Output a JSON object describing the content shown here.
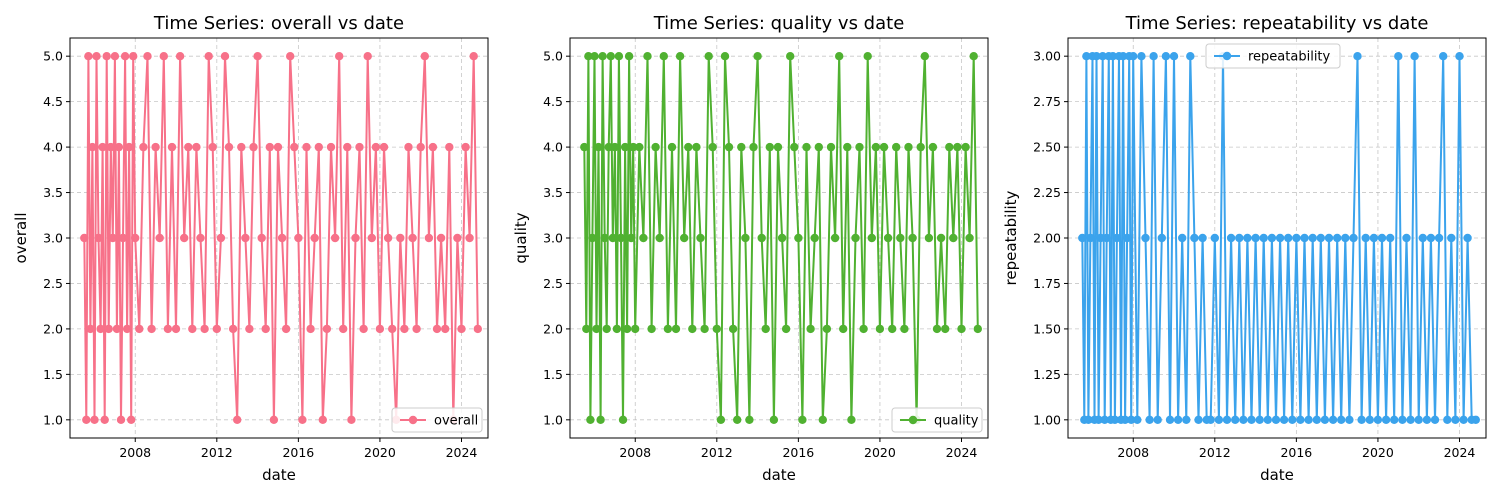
{
  "chart_data": [
    {
      "type": "line",
      "title": "Time Series: overall vs date",
      "xlabel": "date",
      "ylabel": "overall",
      "xlim": [
        2004.8,
        2025.3
      ],
      "ylim": [
        0.8,
        5.2
      ],
      "xticks": [
        "2008",
        "2012",
        "2016",
        "2020",
        "2024"
      ],
      "xtick_values": [
        2008,
        2012,
        2016,
        2020,
        2024
      ],
      "yticks": [
        "1.0",
        "1.5",
        "2.0",
        "2.5",
        "3.0",
        "3.5",
        "4.0",
        "4.5",
        "5.0"
      ],
      "ytick_values": [
        1.0,
        1.5,
        2.0,
        2.5,
        3.0,
        3.5,
        4.0,
        4.5,
        5.0
      ],
      "grid": true,
      "legend_placement": "lower-right",
      "series": [
        {
          "name": "overall",
          "color": "#f77189",
          "x": [
            2005.5,
            2005.6,
            2005.7,
            2005.8,
            2005.9,
            2006.0,
            2006.1,
            2006.2,
            2006.3,
            2006.4,
            2006.5,
            2006.6,
            2006.7,
            2006.8,
            2006.9,
            2007.0,
            2007.1,
            2007.2,
            2007.3,
            2007.4,
            2007.5,
            2007.6,
            2007.7,
            2007.8,
            2007.9,
            2008.0,
            2008.2,
            2008.4,
            2008.6,
            2008.8,
            2009.0,
            2009.2,
            2009.4,
            2009.6,
            2009.8,
            2010.0,
            2010.2,
            2010.4,
            2010.6,
            2010.8,
            2011.0,
            2011.2,
            2011.4,
            2011.6,
            2011.8,
            2012.0,
            2012.2,
            2012.4,
            2012.6,
            2012.8,
            2013.0,
            2013.2,
            2013.4,
            2013.6,
            2013.8,
            2014.0,
            2014.2,
            2014.4,
            2014.6,
            2014.8,
            2015.0,
            2015.2,
            2015.4,
            2015.6,
            2015.8,
            2016.0,
            2016.2,
            2016.4,
            2016.6,
            2016.8,
            2017.0,
            2017.2,
            2017.4,
            2017.6,
            2017.8,
            2018.0,
            2018.2,
            2018.4,
            2018.6,
            2018.8,
            2019.0,
            2019.2,
            2019.4,
            2019.6,
            2019.8,
            2020.0,
            2020.2,
            2020.4,
            2020.6,
            2020.8,
            2021.0,
            2021.2,
            2021.4,
            2021.6,
            2021.8,
            2022.0,
            2022.2,
            2022.4,
            2022.6,
            2022.8,
            2023.0,
            2023.2,
            2023.4,
            2023.6,
            2023.8,
            2024.0,
            2024.2,
            2024.4,
            2024.6,
            2024.8
          ],
          "y": [
            3,
            1,
            5,
            2,
            4,
            1,
            5,
            3,
            2,
            4,
            1,
            5,
            2,
            4,
            3,
            5,
            2,
            4,
            1,
            3,
            5,
            2,
            4,
            1,
            5,
            3,
            2,
            4,
            5,
            2,
            4,
            3,
            5,
            2,
            4,
            2,
            5,
            3,
            4,
            2,
            4,
            3,
            2,
            5,
            4,
            2,
            3,
            5,
            4,
            2,
            1,
            4,
            3,
            2,
            4,
            5,
            3,
            2,
            4,
            1,
            4,
            3,
            2,
            5,
            4,
            3,
            1,
            4,
            2,
            3,
            4,
            1,
            2,
            4,
            3,
            5,
            2,
            4,
            1,
            3,
            4,
            2,
            5,
            3,
            4,
            2,
            4,
            3,
            2,
            1,
            3,
            2,
            4,
            3,
            2,
            4,
            5,
            3,
            4,
            2,
            3,
            2,
            4,
            1,
            3,
            2,
            4,
            3,
            5,
            2
          ]
        }
      ]
    },
    {
      "type": "line",
      "title": "Time Series: quality vs date",
      "xlabel": "date",
      "ylabel": "quality",
      "xlim": [
        2004.8,
        2025.3
      ],
      "ylim": [
        0.8,
        5.2
      ],
      "xticks": [
        "2008",
        "2012",
        "2016",
        "2020",
        "2024"
      ],
      "xtick_values": [
        2008,
        2012,
        2016,
        2020,
        2024
      ],
      "yticks": [
        "1.0",
        "1.5",
        "2.0",
        "2.5",
        "3.0",
        "3.5",
        "4.0",
        "4.5",
        "5.0"
      ],
      "ytick_values": [
        1.0,
        1.5,
        2.0,
        2.5,
        3.0,
        3.5,
        4.0,
        4.5,
        5.0
      ],
      "grid": true,
      "legend_placement": "lower-right",
      "series": [
        {
          "name": "quality",
          "color": "#50b131",
          "x": [
            2005.5,
            2005.6,
            2005.7,
            2005.8,
            2005.9,
            2006.0,
            2006.1,
            2006.2,
            2006.3,
            2006.4,
            2006.5,
            2006.6,
            2006.7,
            2006.8,
            2006.9,
            2007.0,
            2007.1,
            2007.2,
            2007.3,
            2007.4,
            2007.5,
            2007.6,
            2007.7,
            2007.8,
            2007.9,
            2008.0,
            2008.2,
            2008.4,
            2008.6,
            2008.8,
            2009.0,
            2009.2,
            2009.4,
            2009.6,
            2009.8,
            2010.0,
            2010.2,
            2010.4,
            2010.6,
            2010.8,
            2011.0,
            2011.2,
            2011.4,
            2011.6,
            2011.8,
            2012.0,
            2012.2,
            2012.4,
            2012.6,
            2012.8,
            2013.0,
            2013.2,
            2013.4,
            2013.6,
            2013.8,
            2014.0,
            2014.2,
            2014.4,
            2014.6,
            2014.8,
            2015.0,
            2015.2,
            2015.4,
            2015.6,
            2015.8,
            2016.0,
            2016.2,
            2016.4,
            2016.6,
            2016.8,
            2017.0,
            2017.2,
            2017.4,
            2017.6,
            2017.8,
            2018.0,
            2018.2,
            2018.4,
            2018.6,
            2018.8,
            2019.0,
            2019.2,
            2019.4,
            2019.6,
            2019.8,
            2020.0,
            2020.2,
            2020.4,
            2020.6,
            2020.8,
            2021.0,
            2021.2,
            2021.4,
            2021.6,
            2021.8,
            2022.0,
            2022.2,
            2022.4,
            2022.6,
            2022.8,
            2023.0,
            2023.2,
            2023.4,
            2023.6,
            2023.8,
            2024.0,
            2024.2,
            2024.4,
            2024.6,
            2024.8
          ],
          "y": [
            4,
            2,
            5,
            1,
            3,
            5,
            2,
            4,
            1,
            5,
            3,
            2,
            4,
            5,
            3,
            4,
            2,
            5,
            3,
            1,
            4,
            2,
            5,
            3,
            4,
            2,
            4,
            3,
            5,
            2,
            4,
            3,
            5,
            2,
            4,
            2,
            5,
            3,
            4,
            2,
            4,
            3,
            2,
            5,
            4,
            2,
            1,
            5,
            4,
            2,
            1,
            4,
            3,
            1,
            4,
            5,
            3,
            2,
            4,
            1,
            4,
            3,
            2,
            5,
            4,
            3,
            1,
            4,
            2,
            3,
            4,
            1,
            2,
            4,
            3,
            5,
            2,
            4,
            1,
            3,
            4,
            2,
            5,
            3,
            4,
            2,
            4,
            3,
            2,
            4,
            3,
            2,
            4,
            3,
            1,
            4,
            5,
            3,
            4,
            2,
            3,
            2,
            4,
            3,
            4,
            2,
            4,
            3,
            5,
            2
          ]
        }
      ]
    },
    {
      "type": "line",
      "title": "Time Series: repeatability vs date",
      "xlabel": "date",
      "ylabel": "repeatability",
      "xlim": [
        2004.8,
        2025.3
      ],
      "ylim": [
        0.9,
        3.1
      ],
      "xticks": [
        "2008",
        "2012",
        "2016",
        "2020",
        "2024"
      ],
      "xtick_values": [
        2008,
        2012,
        2016,
        2020,
        2024
      ],
      "yticks": [
        "1.00",
        "1.25",
        "1.50",
        "1.75",
        "2.00",
        "2.25",
        "2.50",
        "2.75",
        "3.00"
      ],
      "ytick_values": [
        1.0,
        1.25,
        1.5,
        1.75,
        2.0,
        2.25,
        2.5,
        2.75,
        3.0
      ],
      "grid": true,
      "legend_placement": "top-center",
      "series": [
        {
          "name": "repeatability",
          "color": "#3ba3ec",
          "x": [
            2005.5,
            2005.6,
            2005.7,
            2005.8,
            2005.9,
            2006.0,
            2006.1,
            2006.2,
            2006.3,
            2006.4,
            2006.5,
            2006.6,
            2006.7,
            2006.8,
            2006.9,
            2007.0,
            2007.1,
            2007.2,
            2007.3,
            2007.4,
            2007.5,
            2007.6,
            2007.7,
            2007.8,
            2007.9,
            2008.0,
            2008.2,
            2008.4,
            2008.6,
            2008.8,
            2009.0,
            2009.2,
            2009.4,
            2009.6,
            2009.8,
            2010.0,
            2010.2,
            2010.4,
            2010.6,
            2010.8,
            2011.0,
            2011.2,
            2011.4,
            2011.6,
            2011.8,
            2012.0,
            2012.2,
            2012.4,
            2012.6,
            2012.8,
            2013.0,
            2013.2,
            2013.4,
            2013.6,
            2013.8,
            2014.0,
            2014.2,
            2014.4,
            2014.6,
            2014.8,
            2015.0,
            2015.2,
            2015.4,
            2015.6,
            2015.8,
            2016.0,
            2016.2,
            2016.4,
            2016.6,
            2016.8,
            2017.0,
            2017.2,
            2017.4,
            2017.6,
            2017.8,
            2018.0,
            2018.2,
            2018.4,
            2018.6,
            2018.8,
            2019.0,
            2019.2,
            2019.4,
            2019.6,
            2019.8,
            2020.0,
            2020.2,
            2020.4,
            2020.6,
            2020.8,
            2021.0,
            2021.2,
            2021.4,
            2021.6,
            2021.8,
            2022.0,
            2022.2,
            2022.4,
            2022.6,
            2022.8,
            2023.0,
            2023.2,
            2023.4,
            2023.6,
            2023.8,
            2024.0,
            2024.2,
            2024.4,
            2024.6,
            2024.8
          ],
          "y": [
            2,
            1,
            3,
            1,
            2,
            3,
            1,
            3,
            1,
            2,
            3,
            1,
            2,
            3,
            1,
            3,
            1,
            2,
            3,
            1,
            3,
            1,
            2,
            3,
            1,
            3,
            1,
            3,
            2,
            1,
            3,
            1,
            2,
            3,
            1,
            3,
            1,
            2,
            1,
            3,
            2,
            1,
            2,
            1,
            1,
            2,
            1,
            3,
            1,
            2,
            1,
            2,
            1,
            2,
            1,
            2,
            1,
            2,
            1,
            2,
            1,
            2,
            1,
            2,
            1,
            2,
            1,
            2,
            1,
            2,
            1,
            2,
            1,
            2,
            1,
            2,
            1,
            2,
            1,
            2,
            3,
            1,
            2,
            1,
            2,
            1,
            2,
            1,
            2,
            1,
            3,
            1,
            2,
            1,
            3,
            1,
            2,
            1,
            2,
            1,
            2,
            3,
            1,
            2,
            1,
            3,
            1,
            2,
            1,
            1
          ]
        }
      ]
    }
  ]
}
